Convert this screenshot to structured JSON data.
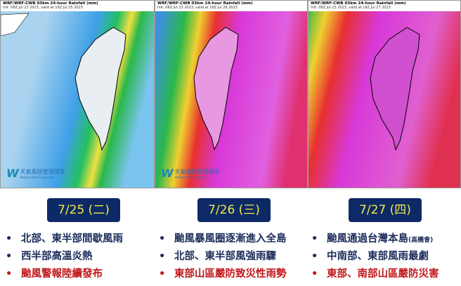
{
  "panels": [
    {
      "title": "WRF/WRF-CWB 03km 24-hour Rainfall (mm)",
      "subtitle": "Init: 06Z Jul 23 2023, valid at 16Z Jul 25 2023",
      "intensity": "light"
    },
    {
      "title": "WRF/WRF-CWB 03km 24-hour Rainfall (mm)",
      "subtitle": "Init: 06Z Jul 23 2023, valid at 16Z Jul 26 2023",
      "intensity": "heavy"
    },
    {
      "title": "WRF/WRF-CWB 03km 24-hour Rainfall (mm)",
      "subtitle": "Init: 06Z Jul 23 2023, valid at 16Z Jul 27 2023",
      "intensity": "extreme"
    }
  ],
  "logo": {
    "cn": "天氣風險管理開發",
    "en": "WeatherRisk Explore Inc"
  },
  "days": [
    {
      "date": "7/25 (二)",
      "items": [
        {
          "text": "北部、東半部間歇風雨"
        },
        {
          "text": "西半部高溫炎熱"
        },
        {
          "text": "颱風警報陸續發布",
          "alert": true
        }
      ]
    },
    {
      "date": "7/26 (三)",
      "items": [
        {
          "text": "颱風暴風圈逐漸進入全島"
        },
        {
          "text": "北部、東半部風強雨驟"
        },
        {
          "text": "東部山區嚴防致災性雨勢",
          "alert": true
        }
      ]
    },
    {
      "date": "7/27 (四)",
      "items": [
        {
          "text": "颱風通過台灣本島",
          "note": "(高機會)"
        },
        {
          "text": "中南部、東部風雨最劇"
        },
        {
          "text": "東部、南部山區嚴防災害",
          "alert": true
        }
      ]
    }
  ],
  "colors": {
    "date_bg": "#0d2a66",
    "date_text": "#f1e84a",
    "text": "#1b2c5a",
    "alert": "#c0171a"
  }
}
